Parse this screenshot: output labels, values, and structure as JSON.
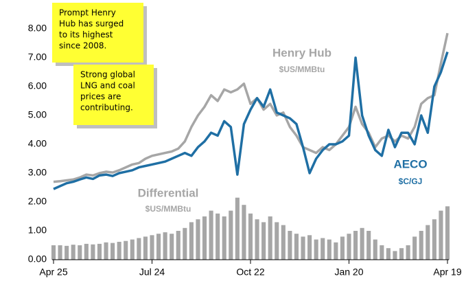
{
  "chart_data": {
    "type": "line",
    "categories": [
      "Apr 25",
      null,
      null,
      null,
      null,
      null,
      null,
      null,
      null,
      null,
      null,
      null,
      null,
      null,
      null,
      "Jul 24",
      null,
      null,
      null,
      null,
      null,
      null,
      null,
      null,
      null,
      null,
      null,
      null,
      null,
      null,
      "Oct 22",
      null,
      null,
      null,
      null,
      null,
      null,
      null,
      null,
      null,
      null,
      null,
      null,
      null,
      null,
      "Jan 20",
      null,
      null,
      null,
      null,
      null,
      null,
      null,
      null,
      null,
      null,
      null,
      null,
      null,
      null,
      "Apr 19"
    ],
    "series": [
      {
        "name": "Henry Hub",
        "unit": "$US/MMBtu",
        "color": "#a6a6a6",
        "kind": "line",
        "values": [
          2.7,
          2.72,
          2.75,
          2.78,
          2.85,
          2.95,
          2.92,
          3.0,
          3.05,
          3.02,
          3.1,
          3.2,
          3.3,
          3.35,
          3.5,
          3.6,
          3.65,
          3.7,
          3.75,
          3.85,
          4.1,
          4.6,
          5.0,
          5.3,
          5.7,
          5.5,
          5.9,
          5.8,
          5.9,
          6.1,
          5.4,
          5.6,
          5.2,
          5.4,
          5.0,
          5.1,
          4.6,
          4.3,
          3.9,
          3.8,
          3.7,
          3.9,
          3.8,
          4.0,
          4.3,
          4.6,
          5.3,
          4.7,
          4.4,
          3.9,
          4.2,
          4.3,
          4.1,
          4.3,
          4.2,
          4.6,
          5.4,
          5.6,
          5.7,
          6.8,
          7.85
        ]
      },
      {
        "name": "AECO",
        "unit": "$C/GJ",
        "color": "#1f6fa4",
        "kind": "line",
        "values": [
          2.45,
          2.55,
          2.65,
          2.7,
          2.78,
          2.85,
          2.8,
          2.92,
          2.95,
          2.9,
          3.0,
          3.05,
          3.1,
          3.2,
          3.25,
          3.3,
          3.35,
          3.4,
          3.5,
          3.6,
          3.7,
          3.6,
          3.9,
          4.1,
          4.4,
          4.3,
          4.8,
          4.6,
          2.95,
          4.7,
          5.2,
          5.6,
          5.3,
          5.9,
          5.1,
          5.0,
          4.9,
          4.7,
          3.9,
          3.0,
          3.5,
          3.8,
          4.0,
          4.0,
          4.1,
          4.3,
          7.0,
          5.0,
          4.3,
          3.8,
          3.6,
          4.5,
          3.9,
          4.4,
          4.4,
          4.0,
          5.0,
          4.4,
          6.0,
          6.5,
          7.2
        ]
      },
      {
        "name": "Differential",
        "unit": "$US/MMBtu",
        "color": "#a6a6a6",
        "kind": "bar",
        "values": [
          0.5,
          0.5,
          0.48,
          0.52,
          0.5,
          0.55,
          0.53,
          0.55,
          0.6,
          0.58,
          0.62,
          0.65,
          0.7,
          0.75,
          0.8,
          0.85,
          0.9,
          0.95,
          0.9,
          1.0,
          1.1,
          1.3,
          1.4,
          1.5,
          1.7,
          1.6,
          1.5,
          1.7,
          2.15,
          1.9,
          1.6,
          1.4,
          1.3,
          1.5,
          1.3,
          1.2,
          1.0,
          0.9,
          0.8,
          0.85,
          0.7,
          0.75,
          0.7,
          0.6,
          0.8,
          0.9,
          1.0,
          1.1,
          1.0,
          0.7,
          0.5,
          0.4,
          0.3,
          0.4,
          0.5,
          0.8,
          1.0,
          1.2,
          1.4,
          1.7,
          1.85
        ]
      }
    ],
    "ylim": [
      0,
      8
    ],
    "yticks": [
      {
        "value": 0,
        "label": "0.00"
      },
      {
        "value": 1,
        "label": "1.00"
      },
      {
        "value": 2,
        "label": "2.00"
      },
      {
        "value": 3,
        "label": "3.00"
      },
      {
        "value": 4,
        "label": "4.00"
      },
      {
        "value": 5,
        "label": "5.00"
      },
      {
        "value": 6,
        "label": "6.00"
      },
      {
        "value": 7,
        "label": "7.00"
      },
      {
        "value": 8,
        "label": "8.00"
      }
    ],
    "annotations": [
      [
        "Prompt Henry",
        "Hub has surged",
        "to its highest",
        "since 2008."
      ],
      [
        "Strong global",
        "LNG and coal",
        "prices are",
        "contributing."
      ]
    ]
  }
}
